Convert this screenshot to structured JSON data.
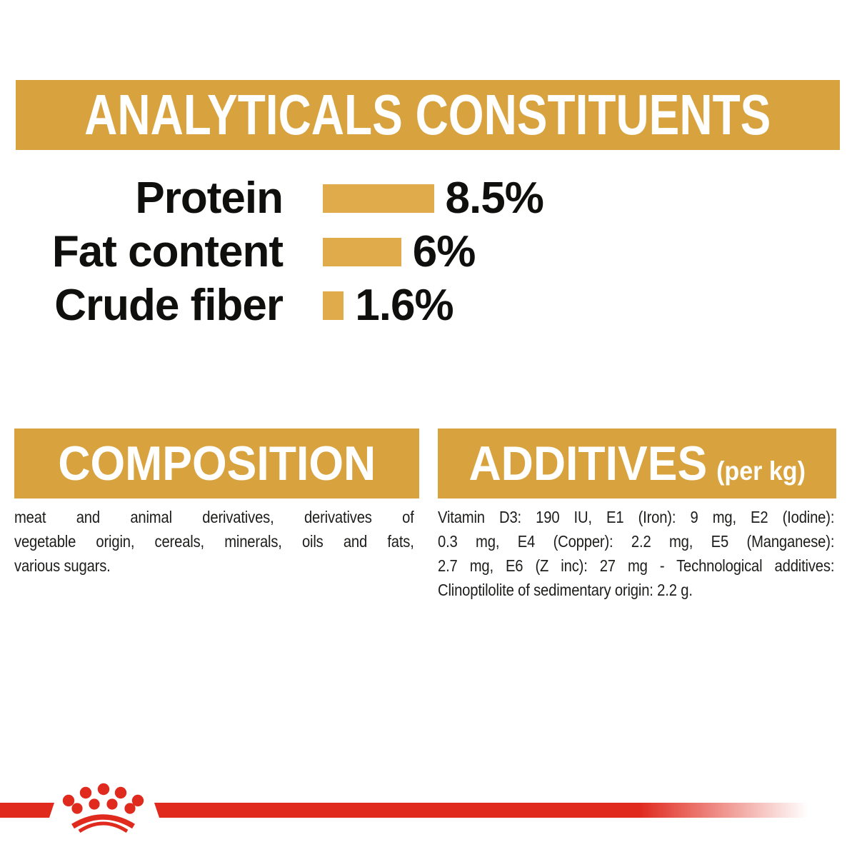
{
  "colors": {
    "gold_banner": "#D8A33F",
    "gold_bar": "#DFAB4B",
    "brand_red": "#E02A1E",
    "text_dark": "#1D1D1B",
    "text_black": "#0F0F0D",
    "banner_text": "#FFFFFF",
    "background": "#FFFFFF"
  },
  "analyticals": {
    "title": "ANALYTICALS CONSTITUENTS",
    "rows": [
      {
        "label": "Protein",
        "value_label": "8.5%"
      },
      {
        "label": "Fat content",
        "value_label": "6%"
      },
      {
        "label": "Crude fiber",
        "value_label": "1.6%"
      }
    ]
  },
  "composition": {
    "title": "COMPOSITION",
    "lines": [
      "meat and animal derivatives, derivatives of",
      "vegetable origin, cereals, minerals, oils and fats,",
      "various sugars."
    ]
  },
  "additives": {
    "title": "ADDITIVES",
    "unit_label": "(per kg)",
    "lines": [
      "Vitamin D3: 190 IU, E1 (Iron): 9 mg, E2 (Iodine):",
      "0.3 mg, E4 (Copper): 2.2 mg, E5 (Manganese):",
      "2.7 mg, E6 (Z inc): 27 mg - Technological additives:",
      "Clinoptilolite of sedimentary origin: 2.2 g."
    ]
  },
  "footer": {
    "logo_icon": "royal-canin-crown-icon"
  },
  "chart_data": {
    "type": "bar",
    "orientation": "horizontal",
    "title": "ANALYTICALS CONSTITUENTS",
    "categories": [
      "Protein",
      "Fat content",
      "Crude fiber"
    ],
    "values": [
      8.5,
      6,
      1.6
    ],
    "value_labels": [
      "8.5%",
      "6%",
      "1.6%"
    ],
    "xlim": [
      0,
      10
    ],
    "grid": false,
    "legend": false,
    "bar_color": "#DFAB4B"
  }
}
